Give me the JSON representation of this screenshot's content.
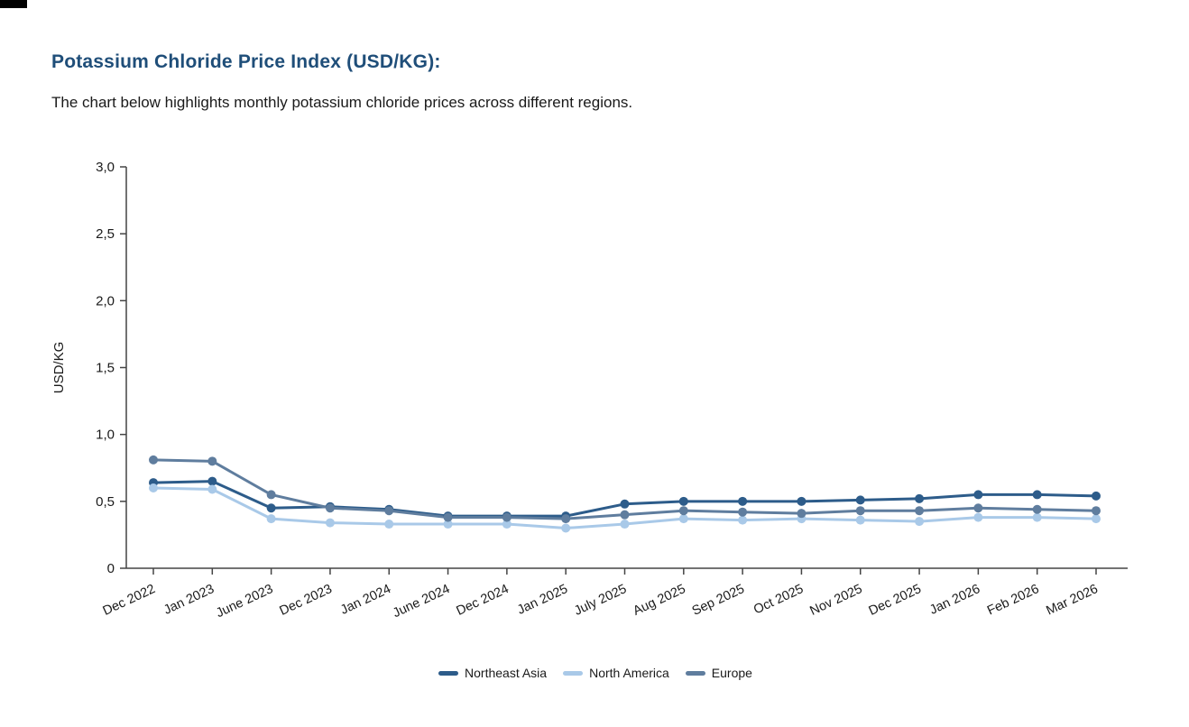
{
  "page": {
    "title": "Potassium Chloride Price Index (USD/KG):",
    "subtitle": "The chart below highlights monthly potassium chloride prices across different regions.",
    "title_color": "#1f4e79"
  },
  "chart_data": {
    "type": "line",
    "title": "Potassium Chloride Price Index (USD/KG)",
    "xlabel": "",
    "ylabel": "USD/KG",
    "ylim": [
      0,
      3.0
    ],
    "yticks": [
      0,
      0.5,
      1.0,
      1.5,
      2.0,
      2.5,
      3.0
    ],
    "ytick_labels": [
      "0",
      "0,5",
      "1,0",
      "1,5",
      "2,0",
      "2,5",
      "3,0"
    ],
    "grid": false,
    "legend_position": "bottom",
    "axis_color": "#444444",
    "categories": [
      "Dec 2022",
      "Jan 2023",
      "June 2023",
      "Dec 2023",
      "Jan 2024",
      "June 2024",
      "Dec 2024",
      "Jan 2025",
      "July 2025",
      "Aug 2025",
      "Sep 2025",
      "Oct 2025",
      "Nov 2025",
      "Dec 2025",
      "Jan 2026",
      "Feb 2026",
      "Mar 2026"
    ],
    "series": [
      {
        "name": "Northeast Asia",
        "color": "#2d5c8a",
        "values": [
          0.64,
          0.65,
          0.45,
          0.46,
          0.44,
          0.39,
          0.39,
          0.39,
          0.48,
          0.5,
          0.5,
          0.5,
          0.51,
          0.52,
          0.55,
          0.55,
          0.54
        ]
      },
      {
        "name": "North America",
        "color": "#a9c9e8",
        "values": [
          0.6,
          0.59,
          0.37,
          0.34,
          0.33,
          0.33,
          0.33,
          0.3,
          0.33,
          0.37,
          0.36,
          0.37,
          0.36,
          0.35,
          0.38,
          0.38,
          0.37
        ]
      },
      {
        "name": "Europe",
        "color": "#5f7d9e",
        "values": [
          0.81,
          0.8,
          0.55,
          0.45,
          0.43,
          0.38,
          0.38,
          0.37,
          0.4,
          0.43,
          0.42,
          0.41,
          0.43,
          0.43,
          0.45,
          0.44,
          0.43
        ]
      }
    ]
  }
}
